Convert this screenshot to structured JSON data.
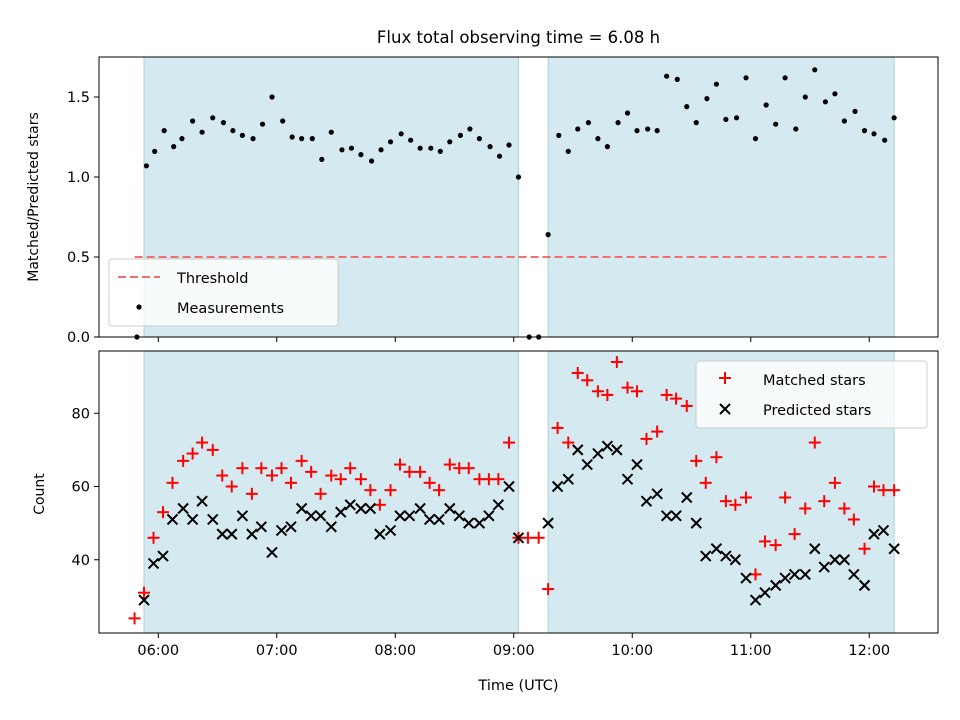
{
  "chart_data": {
    "title": "Flux total observing time = 6.08 h",
    "xlabel": "Time (UTC)",
    "x_units": "hours UTC",
    "xlim": [
      5.5,
      12.58
    ],
    "x_ticks": [
      6,
      7,
      8,
      9,
      10,
      11,
      12
    ],
    "x_tick_labels": [
      "06:00",
      "07:00",
      "08:00",
      "09:00",
      "10:00",
      "11:00",
      "12:00"
    ],
    "colors": {
      "shade": "#d4eaf0",
      "shade_edge": "#a9d3dc",
      "threshold": "#f07070",
      "matched": "#ff0000",
      "predicted": "#000000",
      "measurement": "#000000"
    },
    "shaded_intervals": [
      [
        5.88,
        9.04
      ],
      [
        9.29,
        12.21
      ]
    ],
    "panels": [
      {
        "type": "scatter",
        "ylabel": "Matched/Predicted stars",
        "ylim": [
          0,
          1.75
        ],
        "y_ticks": [
          0.0,
          0.5,
          1.0,
          1.5
        ],
        "y_tick_labels": [
          "0.0",
          "0.5",
          "1.0",
          "1.5"
        ],
        "legend_position": "lower-left",
        "threshold": {
          "name": "Threshold",
          "y": 0.5,
          "x_range": [
            5.8,
            12.17
          ]
        },
        "series": [
          {
            "name": "Measurements",
            "marker": "dot",
            "points": [
              [
                5.82,
                0.0
              ],
              [
                5.9,
                1.07
              ],
              [
                5.97,
                1.16
              ],
              [
                6.05,
                1.29
              ],
              [
                6.13,
                1.19
              ],
              [
                6.2,
                1.24
              ],
              [
                6.29,
                1.35
              ],
              [
                6.37,
                1.28
              ],
              [
                6.46,
                1.37
              ],
              [
                6.55,
                1.34
              ],
              [
                6.63,
                1.29
              ],
              [
                6.71,
                1.26
              ],
              [
                6.8,
                1.24
              ],
              [
                6.88,
                1.33
              ],
              [
                6.96,
                1.5
              ],
              [
                7.05,
                1.35
              ],
              [
                7.13,
                1.25
              ],
              [
                7.21,
                1.24
              ],
              [
                7.3,
                1.24
              ],
              [
                7.38,
                1.11
              ],
              [
                7.46,
                1.28
              ],
              [
                7.55,
                1.17
              ],
              [
                7.63,
                1.18
              ],
              [
                7.71,
                1.14
              ],
              [
                7.8,
                1.1
              ],
              [
                7.88,
                1.17
              ],
              [
                7.96,
                1.22
              ],
              [
                8.05,
                1.27
              ],
              [
                8.13,
                1.23
              ],
              [
                8.21,
                1.18
              ],
              [
                8.3,
                1.18
              ],
              [
                8.38,
                1.16
              ],
              [
                8.46,
                1.22
              ],
              [
                8.55,
                1.26
              ],
              [
                8.63,
                1.3
              ],
              [
                8.71,
                1.24
              ],
              [
                8.8,
                1.19
              ],
              [
                8.88,
                1.13
              ],
              [
                8.96,
                1.2
              ],
              [
                9.04,
                1.0
              ],
              [
                9.13,
                0.0
              ],
              [
                9.21,
                0.0
              ],
              [
                9.29,
                0.64
              ],
              [
                9.38,
                1.26
              ],
              [
                9.46,
                1.16
              ],
              [
                9.54,
                1.3
              ],
              [
                9.63,
                1.34
              ],
              [
                9.71,
                1.24
              ],
              [
                9.79,
                1.19
              ],
              [
                9.88,
                1.34
              ],
              [
                9.96,
                1.4
              ],
              [
                10.04,
                1.29
              ],
              [
                10.13,
                1.3
              ],
              [
                10.21,
                1.29
              ],
              [
                10.29,
                1.63
              ],
              [
                10.38,
                1.61
              ],
              [
                10.46,
                1.44
              ],
              [
                10.54,
                1.34
              ],
              [
                10.63,
                1.49
              ],
              [
                10.71,
                1.58
              ],
              [
                10.79,
                1.36
              ],
              [
                10.88,
                1.37
              ],
              [
                10.96,
                1.62
              ],
              [
                11.04,
                1.24
              ],
              [
                11.13,
                1.45
              ],
              [
                11.21,
                1.33
              ],
              [
                11.29,
                1.62
              ],
              [
                11.38,
                1.3
              ],
              [
                11.46,
                1.5
              ],
              [
                11.54,
                1.67
              ],
              [
                11.63,
                1.47
              ],
              [
                11.71,
                1.52
              ],
              [
                11.79,
                1.35
              ],
              [
                11.88,
                1.41
              ],
              [
                11.96,
                1.29
              ],
              [
                12.04,
                1.27
              ],
              [
                12.13,
                1.23
              ],
              [
                12.21,
                1.37
              ]
            ]
          }
        ]
      },
      {
        "type": "scatter",
        "ylabel": "Count",
        "ylim": [
          20,
          97
        ],
        "y_ticks": [
          40,
          60,
          80
        ],
        "y_tick_labels": [
          "40",
          "60",
          "80"
        ],
        "legend_position": "upper-right",
        "series": [
          {
            "name": "Matched stars",
            "marker": "plus",
            "points": [
              [
                5.8,
                24
              ],
              [
                5.88,
                31
              ],
              [
                5.96,
                46
              ],
              [
                6.04,
                53
              ],
              [
                6.12,
                61
              ],
              [
                6.21,
                67
              ],
              [
                6.29,
                69
              ],
              [
                6.37,
                72
              ],
              [
                6.46,
                70
              ],
              [
                6.54,
                63
              ],
              [
                6.62,
                60
              ],
              [
                6.71,
                65
              ],
              [
                6.79,
                58
              ],
              [
                6.87,
                65
              ],
              [
                6.96,
                63
              ],
              [
                7.04,
                65
              ],
              [
                7.12,
                61
              ],
              [
                7.21,
                67
              ],
              [
                7.29,
                64
              ],
              [
                7.37,
                58
              ],
              [
                7.46,
                63
              ],
              [
                7.54,
                62
              ],
              [
                7.62,
                65
              ],
              [
                7.71,
                62
              ],
              [
                7.79,
                59
              ],
              [
                7.87,
                55
              ],
              [
                7.96,
                59
              ],
              [
                8.04,
                66
              ],
              [
                8.12,
                64
              ],
              [
                8.21,
                64
              ],
              [
                8.29,
                61
              ],
              [
                8.37,
                59
              ],
              [
                8.46,
                66
              ],
              [
                8.54,
                65
              ],
              [
                8.62,
                65
              ],
              [
                8.71,
                62
              ],
              [
                8.79,
                62
              ],
              [
                8.87,
                62
              ],
              [
                8.96,
                72
              ],
              [
                9.04,
                46
              ],
              [
                9.12,
                46
              ],
              [
                9.21,
                46
              ],
              [
                9.29,
                32
              ],
              [
                9.37,
                76
              ],
              [
                9.46,
                72
              ],
              [
                9.54,
                91
              ],
              [
                9.62,
                89
              ],
              [
                9.71,
                86
              ],
              [
                9.79,
                85
              ],
              [
                9.87,
                94
              ],
              [
                9.96,
                87
              ],
              [
                10.04,
                86
              ],
              [
                10.12,
                73
              ],
              [
                10.21,
                75
              ],
              [
                10.29,
                85
              ],
              [
                10.37,
                84
              ],
              [
                10.46,
                82
              ],
              [
                10.54,
                67
              ],
              [
                10.62,
                61
              ],
              [
                10.71,
                68
              ],
              [
                10.79,
                56
              ],
              [
                10.87,
                55
              ],
              [
                10.96,
                57
              ],
              [
                11.04,
                36
              ],
              [
                11.12,
                45
              ],
              [
                11.21,
                44
              ],
              [
                11.29,
                57
              ],
              [
                11.37,
                47
              ],
              [
                11.46,
                54
              ],
              [
                11.54,
                72
              ],
              [
                11.62,
                56
              ],
              [
                11.71,
                61
              ],
              [
                11.79,
                54
              ],
              [
                11.87,
                51
              ],
              [
                11.96,
                43
              ],
              [
                12.04,
                60
              ],
              [
                12.12,
                59
              ],
              [
                12.21,
                59
              ]
            ]
          },
          {
            "name": "Predicted stars",
            "marker": "x",
            "points": [
              [
                5.88,
                29
              ],
              [
                5.96,
                39
              ],
              [
                6.04,
                41
              ],
              [
                6.12,
                51
              ],
              [
                6.21,
                54
              ],
              [
                6.29,
                51
              ],
              [
                6.37,
                56
              ],
              [
                6.46,
                51
              ],
              [
                6.54,
                47
              ],
              [
                6.62,
                47
              ],
              [
                6.71,
                52
              ],
              [
                6.79,
                47
              ],
              [
                6.87,
                49
              ],
              [
                6.96,
                42
              ],
              [
                7.04,
                48
              ],
              [
                7.12,
                49
              ],
              [
                7.21,
                54
              ],
              [
                7.29,
                52
              ],
              [
                7.37,
                52
              ],
              [
                7.46,
                49
              ],
              [
                7.54,
                53
              ],
              [
                7.62,
                55
              ],
              [
                7.71,
                54
              ],
              [
                7.79,
                54
              ],
              [
                7.87,
                47
              ],
              [
                7.96,
                48
              ],
              [
                8.04,
                52
              ],
              [
                8.12,
                52
              ],
              [
                8.21,
                54
              ],
              [
                8.29,
                51
              ],
              [
                8.37,
                51
              ],
              [
                8.46,
                54
              ],
              [
                8.54,
                52
              ],
              [
                8.62,
                50
              ],
              [
                8.71,
                50
              ],
              [
                8.79,
                52
              ],
              [
                8.87,
                55
              ],
              [
                8.96,
                60
              ],
              [
                9.04,
                46
              ],
              [
                9.29,
                50
              ],
              [
                9.37,
                60
              ],
              [
                9.46,
                62
              ],
              [
                9.54,
                70
              ],
              [
                9.62,
                66
              ],
              [
                9.71,
                69
              ],
              [
                9.79,
                71
              ],
              [
                9.87,
                70
              ],
              [
                9.96,
                62
              ],
              [
                10.04,
                66
              ],
              [
                10.12,
                56
              ],
              [
                10.21,
                58
              ],
              [
                10.29,
                52
              ],
              [
                10.37,
                52
              ],
              [
                10.46,
                57
              ],
              [
                10.54,
                50
              ],
              [
                10.62,
                41
              ],
              [
                10.71,
                43
              ],
              [
                10.79,
                41
              ],
              [
                10.87,
                40
              ],
              [
                10.96,
                35
              ],
              [
                11.04,
                29
              ],
              [
                11.12,
                31
              ],
              [
                11.21,
                33
              ],
              [
                11.29,
                35
              ],
              [
                11.37,
                36
              ],
              [
                11.46,
                36
              ],
              [
                11.54,
                43
              ],
              [
                11.62,
                38
              ],
              [
                11.71,
                40
              ],
              [
                11.79,
                40
              ],
              [
                11.87,
                36
              ],
              [
                11.96,
                33
              ],
              [
                12.04,
                47
              ],
              [
                12.12,
                48
              ],
              [
                12.21,
                43
              ]
            ]
          }
        ]
      }
    ]
  }
}
